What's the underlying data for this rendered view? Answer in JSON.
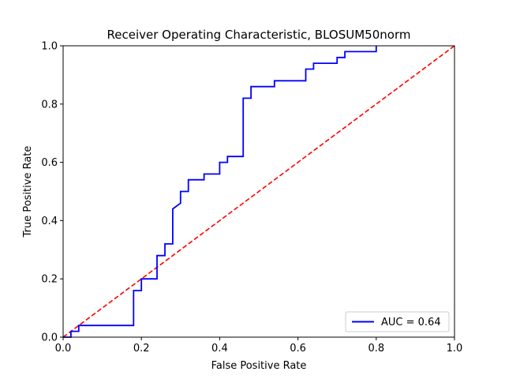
{
  "chart_data": {
    "type": "line",
    "title": "Receiver Operating Characteristic, BLOSUM50norm",
    "xlabel": "False Positive Rate",
    "ylabel": "True Positive Rate",
    "xlim": [
      0,
      1
    ],
    "ylim": [
      0,
      1
    ],
    "x_ticks": [
      "0.0",
      "0.2",
      "0.4",
      "0.6",
      "0.8",
      "1.0"
    ],
    "y_ticks": [
      "0.0",
      "0.2",
      "0.4",
      "0.6",
      "0.8",
      "1.0"
    ],
    "grid": false,
    "legend_position": "lower-right",
    "series": [
      {
        "name": "AUC = 0.64",
        "color": "#0000ff",
        "style": "solid",
        "x": [
          0.0,
          0.02,
          0.02,
          0.04,
          0.04,
          0.18,
          0.18,
          0.2,
          0.2,
          0.24,
          0.24,
          0.26,
          0.26,
          0.28,
          0.28,
          0.3,
          0.3,
          0.32,
          0.32,
          0.36,
          0.36,
          0.4,
          0.4,
          0.42,
          0.42,
          0.46,
          0.46,
          0.48,
          0.48,
          0.54,
          0.54,
          0.62,
          0.62,
          0.64,
          0.64,
          0.7,
          0.7,
          0.72,
          0.72,
          0.8,
          0.8
        ],
        "y": [
          0.0,
          0.0,
          0.02,
          0.02,
          0.04,
          0.04,
          0.16,
          0.16,
          0.2,
          0.2,
          0.28,
          0.28,
          0.32,
          0.32,
          0.44,
          0.46,
          0.5,
          0.5,
          0.54,
          0.54,
          0.56,
          0.56,
          0.6,
          0.6,
          0.62,
          0.62,
          0.82,
          0.82,
          0.86,
          0.86,
          0.88,
          0.88,
          0.92,
          0.92,
          0.94,
          0.94,
          0.96,
          0.96,
          0.98,
          0.98,
          1.0
        ]
      },
      {
        "name": "",
        "color": "#ff0000",
        "style": "dashed",
        "x": [
          0,
          1
        ],
        "y": [
          0,
          1
        ]
      }
    ]
  }
}
